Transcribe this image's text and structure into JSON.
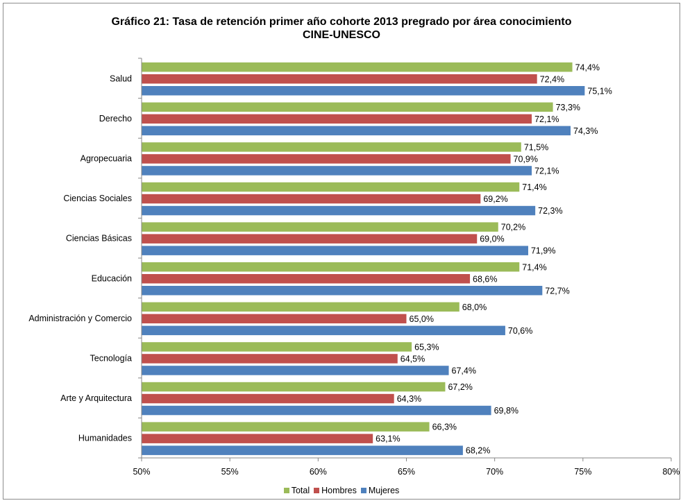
{
  "colors": {
    "Total": "#9BBB59",
    "Hombres": "#C0504D",
    "Mujeres": "#4F81BD"
  },
  "chart_data": {
    "type": "bar",
    "orientation": "horizontal",
    "title": "Gráfico 21: Tasa de retención primer año cohorte 2013 pregrado por área conocimiento",
    "subtitle": "CINE-UNESCO",
    "xlim": [
      0.5,
      0.8
    ],
    "x_ticks": [
      "50%",
      "55%",
      "60%",
      "65%",
      "70%",
      "75%",
      "80%"
    ],
    "x_tick_values": [
      0.5,
      0.55,
      0.6,
      0.65,
      0.7,
      0.75,
      0.8
    ],
    "grid": false,
    "legend_position": "bottom",
    "categories": [
      "Salud",
      "Derecho",
      "Agropecuaria",
      "Ciencias Sociales",
      "Ciencias Básicas",
      "Educación",
      "Administración y Comercio",
      "Tecnología",
      "Arte y Arquitectura",
      "Humanidades"
    ],
    "series": [
      {
        "name": "Total",
        "values": [
          0.744,
          0.733,
          0.715,
          0.714,
          0.702,
          0.714,
          0.68,
          0.653,
          0.672,
          0.663
        ],
        "labels": [
          "74,4%",
          "73,3%",
          "71,5%",
          "71,4%",
          "70,2%",
          "71,4%",
          "68,0%",
          "65,3%",
          "67,2%",
          "66,3%"
        ]
      },
      {
        "name": "Hombres",
        "values": [
          0.724,
          0.721,
          0.709,
          0.692,
          0.69,
          0.686,
          0.65,
          0.645,
          0.643,
          0.631
        ],
        "labels": [
          "72,4%",
          "72,1%",
          "70,9%",
          "69,2%",
          "69,0%",
          "68,6%",
          "65,0%",
          "64,5%",
          "64,3%",
          "63,1%"
        ]
      },
      {
        "name": "Mujeres",
        "values": [
          0.751,
          0.743,
          0.721,
          0.723,
          0.719,
          0.727,
          0.706,
          0.674,
          0.698,
          0.682
        ],
        "labels": [
          "75,1%",
          "74,3%",
          "72,1%",
          "72,3%",
          "71,9%",
          "72,7%",
          "70,6%",
          "67,4%",
          "69,8%",
          "68,2%"
        ]
      }
    ]
  }
}
